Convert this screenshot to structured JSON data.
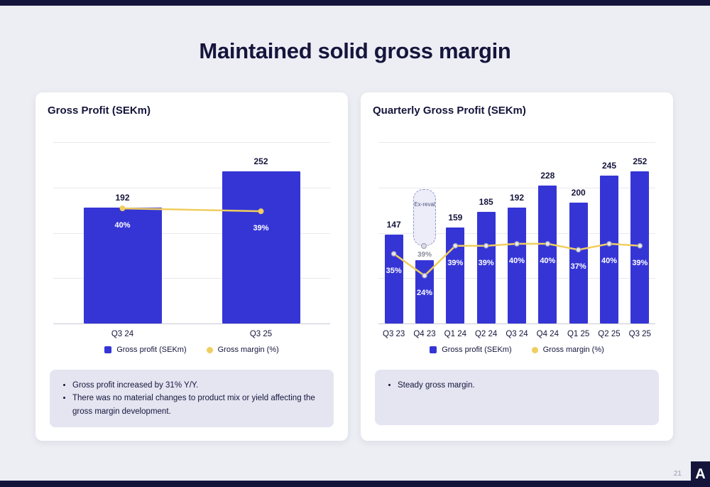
{
  "slide": {
    "title": "Maintained solid gross margin",
    "page_number": "21",
    "logo_text": "A"
  },
  "legend": {
    "bar": "Gross profit (SEKm)",
    "line": "Gross margin (%)"
  },
  "panels": [
    {
      "title": "Gross Profit (SEKm)",
      "notes": [
        "Gross profit increased by 31% Y/Y.",
        "There was no material changes to product mix or yield affecting the gross margin development."
      ]
    },
    {
      "title": "Quarterly Gross Profit (SEKm)",
      "notes": [
        "Steady gross margin."
      ]
    }
  ],
  "colors": {
    "bar": "#3535d6",
    "line": "#f0ce5f",
    "navy": "#15153c",
    "note_bg": "#e4e5f1",
    "background": "#edeef4"
  },
  "chart_data": [
    {
      "type": "bar",
      "subtype": "bar+line",
      "title": "Gross Profit (SEKm)",
      "categories": [
        "Q3 24",
        "Q3 25"
      ],
      "series": [
        {
          "name": "Gross profit (SEKm)",
          "type": "bar",
          "values": [
            192,
            252
          ],
          "labels": [
            "192",
            "252"
          ]
        },
        {
          "name": "Gross margin (%)",
          "type": "line",
          "values": [
            40,
            39
          ],
          "labels": [
            "40%",
            "39%"
          ]
        }
      ],
      "ylim": [
        0,
        300
      ],
      "line_ylim": [
        0,
        63
      ],
      "grid": true,
      "legend_position": "bottom"
    },
    {
      "type": "bar",
      "subtype": "bar+line",
      "title": "Quarterly Gross Profit (SEKm)",
      "categories": [
        "Q3 23",
        "Q4 23",
        "Q1 24",
        "Q2 24",
        "Q3 24",
        "Q4 24",
        "Q1 25",
        "Q2 25",
        "Q3 25"
      ],
      "series": [
        {
          "name": "Gross profit (SEKm)",
          "type": "bar",
          "values": [
            147,
            105,
            159,
            185,
            192,
            228,
            200,
            245,
            252
          ],
          "labels": [
            "147",
            "",
            "159",
            "185",
            "192",
            "228",
            "200",
            "245",
            "252"
          ]
        },
        {
          "name": "Gross margin (%)",
          "type": "line",
          "values": [
            35,
            24,
            39,
            39,
            40,
            40,
            37,
            40,
            39
          ],
          "labels": [
            "35%",
            "24%",
            "39%",
            "39%",
            "40%",
            "40%",
            "37%",
            "40%",
            "39%"
          ]
        }
      ],
      "ylim": [
        0,
        300
      ],
      "line_ylim": [
        0,
        91
      ],
      "grid": true,
      "legend_position": "bottom",
      "annotation": {
        "category": "Q4 23",
        "label": "Ex-reval",
        "value": "39%"
      }
    }
  ]
}
